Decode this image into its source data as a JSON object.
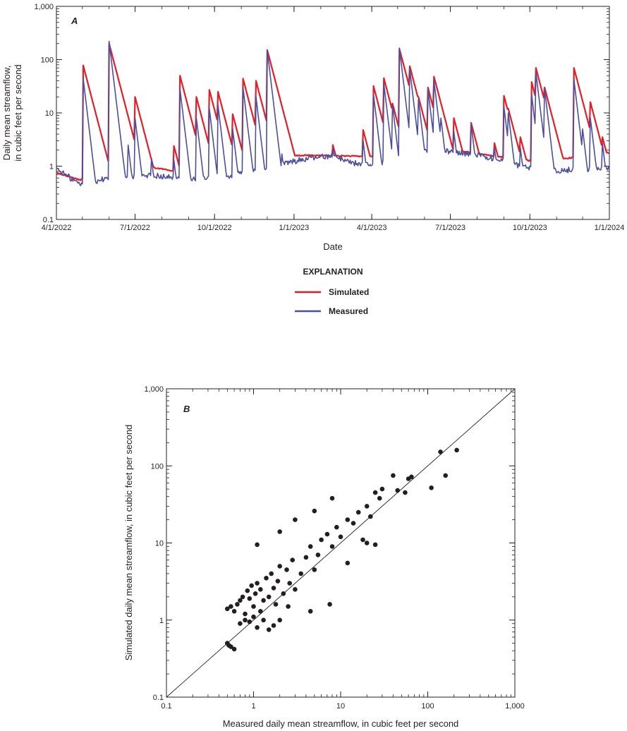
{
  "chart_data": [
    {
      "type": "line",
      "panel_label": "A",
      "xlabel": "Date",
      "ylabel_lines": [
        "Daily mean streamflow,",
        "in cubic feet per second"
      ],
      "y_scale": "log",
      "ylim": [
        0.1,
        1000
      ],
      "xlim": [
        "2022-04-01",
        "2024-01-01"
      ],
      "x_ticks": [
        "4/1/2022",
        "7/1/2022",
        "10/1/2022",
        "1/1/2023",
        "4/1/2023",
        "7/1/2023",
        "10/1/2023",
        "1/1/2024"
      ],
      "x_tick_dates": [
        "2022-04-01",
        "2022-07-01",
        "2022-10-01",
        "2023-01-01",
        "2023-04-01",
        "2023-07-01",
        "2023-10-01",
        "2024-01-01"
      ],
      "y_ticks": [
        "0.1",
        "1",
        "10",
        "100",
        "1,000"
      ],
      "y_tick_values": [
        0.1,
        1,
        10,
        100,
        1000
      ],
      "legend": {
        "title": "EXPLANATION",
        "placement": "below chart"
      },
      "series": [
        {
          "name": "Simulated",
          "color": "#e31e26",
          "peaks": [
            [
              "2022-04-01",
              0.75
            ],
            [
              "2022-05-02",
              78
            ],
            [
              "2022-06-01",
              200
            ],
            [
              "2022-06-23",
              8.5
            ],
            [
              "2022-07-01",
              20
            ],
            [
              "2022-07-20",
              1.3
            ],
            [
              "2022-08-15",
              2.4
            ],
            [
              "2022-08-22",
              50
            ],
            [
              "2022-09-10",
              20
            ],
            [
              "2022-09-25",
              27
            ],
            [
              "2022-10-05",
              25
            ],
            [
              "2022-10-22",
              9.5
            ],
            [
              "2022-11-03",
              44
            ],
            [
              "2022-11-18",
              40
            ],
            [
              "2022-12-01",
              152
            ],
            [
              "2022-12-18",
              5
            ],
            [
              "2023-02-15",
              2.5
            ],
            [
              "2023-03-22",
              4.8
            ],
            [
              "2023-04-03",
              32
            ],
            [
              "2023-04-15",
              45
            ],
            [
              "2023-04-25",
              15
            ],
            [
              "2023-05-03",
              160
            ],
            [
              "2023-05-10",
              18
            ],
            [
              "2023-05-15",
              75
            ],
            [
              "2023-05-25",
              20
            ],
            [
              "2023-06-05",
              30
            ],
            [
              "2023-06-12",
              48
            ],
            [
              "2023-06-20",
              10
            ],
            [
              "2023-07-05",
              8
            ],
            [
              "2023-07-25",
              6.5
            ],
            [
              "2023-08-21",
              2.7
            ],
            [
              "2023-09-01",
              21
            ],
            [
              "2023-09-06",
              12
            ],
            [
              "2023-09-20",
              3.5
            ],
            [
              "2023-10-03",
              38
            ],
            [
              "2023-10-08",
              70
            ],
            [
              "2023-10-18",
              30
            ],
            [
              "2023-11-21",
              70
            ],
            [
              "2023-12-01",
              8
            ],
            [
              "2023-12-10",
              16
            ],
            [
              "2023-12-24",
              3.5
            ]
          ]
        },
        {
          "name": "Measured",
          "color": "#4b4f9d",
          "peaks": [
            [
              "2022-04-01",
              0.95
            ],
            [
              "2022-05-02",
              44
            ],
            [
              "2022-06-01",
              220
            ],
            [
              "2022-06-23",
              2.5
            ],
            [
              "2022-07-01",
              8
            ],
            [
              "2022-07-20",
              1.4
            ],
            [
              "2022-08-15",
              1.3
            ],
            [
              "2022-08-22",
              28
            ],
            [
              "2022-09-10",
              8
            ],
            [
              "2022-09-25",
              12
            ],
            [
              "2022-10-05",
              14
            ],
            [
              "2022-10-22",
              5
            ],
            [
              "2022-11-03",
              30
            ],
            [
              "2022-11-18",
              20
            ],
            [
              "2022-12-01",
              150
            ],
            [
              "2022-12-18",
              1.7
            ],
            [
              "2023-02-15",
              2.2
            ],
            [
              "2023-03-22",
              3
            ],
            [
              "2023-04-03",
              22
            ],
            [
              "2023-04-15",
              35
            ],
            [
              "2023-04-25",
              14
            ],
            [
              "2023-05-03",
              165
            ],
            [
              "2023-05-10",
              14
            ],
            [
              "2023-05-15",
              65
            ],
            [
              "2023-05-25",
              18
            ],
            [
              "2023-06-05",
              28
            ],
            [
              "2023-06-12",
              40
            ],
            [
              "2023-06-20",
              8
            ],
            [
              "2023-07-05",
              4.5
            ],
            [
              "2023-07-25",
              6.2
            ],
            [
              "2023-08-21",
              2.2
            ],
            [
              "2023-09-01",
              13
            ],
            [
              "2023-09-06",
              10
            ],
            [
              "2023-09-20",
              2.2
            ],
            [
              "2023-10-03",
              22
            ],
            [
              "2023-10-08",
              58
            ],
            [
              "2023-10-18",
              28
            ],
            [
              "2023-11-21",
              42
            ],
            [
              "2023-12-01",
              5
            ],
            [
              "2023-12-10",
              8
            ],
            [
              "2023-12-24",
              2.7
            ]
          ]
        }
      ]
    },
    {
      "type": "scatter",
      "panel_label": "B",
      "xlabel": "Measured daily mean streamflow, in cubic feet per second",
      "ylabel": "Simulated daily mean streamflow, in cubic feet per second",
      "x_scale": "log",
      "y_scale": "log",
      "xlim": [
        0.1,
        1000
      ],
      "ylim": [
        0.1,
        1000
      ],
      "x_ticks": [
        "0.1",
        "1",
        "10",
        "100",
        "1,000"
      ],
      "y_ticks": [
        "0.1",
        "1",
        "10",
        "100",
        "1,000"
      ],
      "tick_values": [
        0.1,
        1,
        10,
        100,
        1000
      ],
      "reference_line": "1:1",
      "point_color": "#231f20",
      "points": [
        [
          0.5,
          0.5
        ],
        [
          0.52,
          0.47
        ],
        [
          0.55,
          0.45
        ],
        [
          0.6,
          0.42
        ],
        [
          0.5,
          1.4
        ],
        [
          0.55,
          1.5
        ],
        [
          0.6,
          1.3
        ],
        [
          0.65,
          1.6
        ],
        [
          0.7,
          1.8
        ],
        [
          0.75,
          2.0
        ],
        [
          0.8,
          1.2
        ],
        [
          0.85,
          2.4
        ],
        [
          0.9,
          1.9
        ],
        [
          0.95,
          2.8
        ],
        [
          1.0,
          1.5
        ],
        [
          1.05,
          2.2
        ],
        [
          1.1,
          3.0
        ],
        [
          1.2,
          2.5
        ],
        [
          1.3,
          1.8
        ],
        [
          1.4,
          3.5
        ],
        [
          1.5,
          2.0
        ],
        [
          1.6,
          4.0
        ],
        [
          1.7,
          2.6
        ],
        [
          1.8,
          1.6
        ],
        [
          1.9,
          3.2
        ],
        [
          2.0,
          5.0
        ],
        [
          2.2,
          2.2
        ],
        [
          2.4,
          4.5
        ],
        [
          2.6,
          3.0
        ],
        [
          2.8,
          6.0
        ],
        [
          3.0,
          2.5
        ],
        [
          0.7,
          0.9
        ],
        [
          0.8,
          1.0
        ],
        [
          0.9,
          0.95
        ],
        [
          1.0,
          1.1
        ],
        [
          1.1,
          0.8
        ],
        [
          1.2,
          1.3
        ],
        [
          1.3,
          1.0
        ],
        [
          1.5,
          0.75
        ],
        [
          1.7,
          0.85
        ],
        [
          2.0,
          1.0
        ],
        [
          2.5,
          1.5
        ],
        [
          3.5,
          4.0
        ],
        [
          4.0,
          6.5
        ],
        [
          4.5,
          9.0
        ],
        [
          5.0,
          4.5
        ],
        [
          5.5,
          7.0
        ],
        [
          6.0,
          11.0
        ],
        [
          7.0,
          13.0
        ],
        [
          8.0,
          9.0
        ],
        [
          9.0,
          16.0
        ],
        [
          10.0,
          12.0
        ],
        [
          12.0,
          20.0
        ],
        [
          14.0,
          18.0
        ],
        [
          16.0,
          25.0
        ],
        [
          18.0,
          11.0
        ],
        [
          20.0,
          30.0
        ],
        [
          22.0,
          22.0
        ],
        [
          25.0,
          45.0
        ],
        [
          28.0,
          38.0
        ],
        [
          30.0,
          50.0
        ],
        [
          8.0,
          38.0
        ],
        [
          5.0,
          26.0
        ],
        [
          3.0,
          20.0
        ],
        [
          1.1,
          9.5
        ],
        [
          2.0,
          14.0
        ],
        [
          7.5,
          1.6
        ],
        [
          4.5,
          1.3
        ],
        [
          12.0,
          5.5
        ],
        [
          20.0,
          10.0
        ],
        [
          25.0,
          9.5
        ],
        [
          40.0,
          75.0
        ],
        [
          45.0,
          48.0
        ],
        [
          55.0,
          45.0
        ],
        [
          60.0,
          68.0
        ],
        [
          65.0,
          72.0
        ],
        [
          110.0,
          52.0
        ],
        [
          140.0,
          152.0
        ],
        [
          160.0,
          75.0
        ],
        [
          215.0,
          160.0
        ]
      ]
    }
  ]
}
